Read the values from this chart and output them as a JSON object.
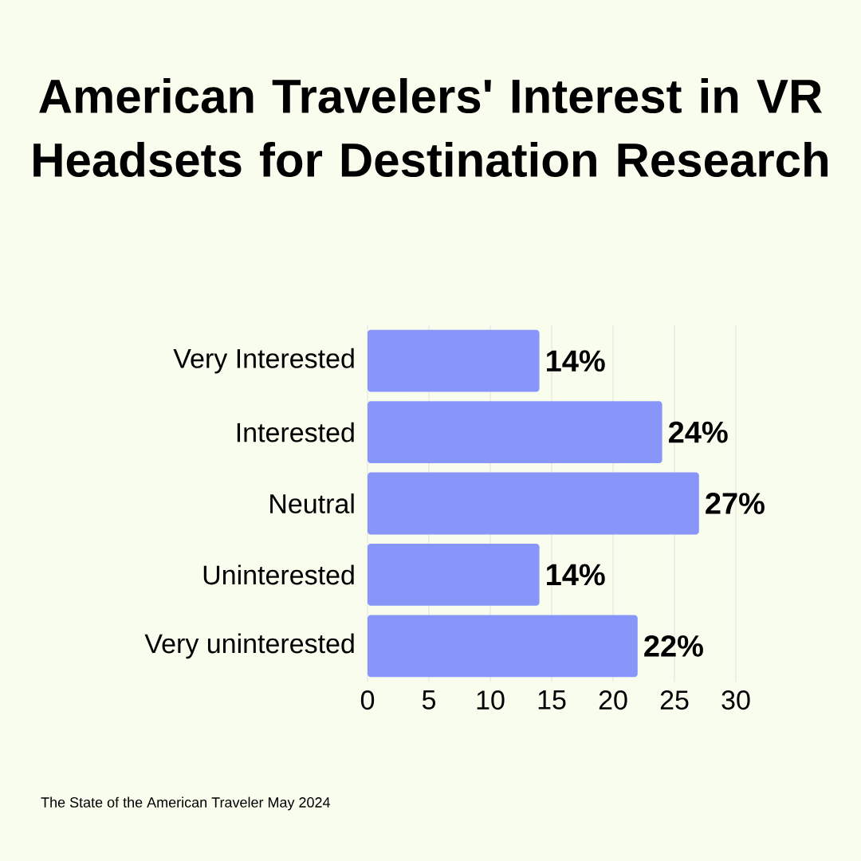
{
  "chart_data": {
    "type": "bar",
    "orientation": "horizontal",
    "title": "American Travelers' Interest in VR Headsets for Destination Research",
    "categories": [
      "Very Interested",
      "Interested",
      "Neutral",
      "Uninterested",
      "Very uninterested"
    ],
    "values": [
      14,
      24,
      27,
      14,
      22
    ],
    "value_labels": [
      "14%",
      "24%",
      "27%",
      "14%",
      "22%"
    ],
    "color": "#8896fa",
    "xlim": [
      0,
      30
    ],
    "xticks": [
      0,
      5,
      10,
      15,
      20,
      25,
      30
    ],
    "grid": "x",
    "annotations": [
      "The State of the American Traveler May 2024"
    ]
  }
}
